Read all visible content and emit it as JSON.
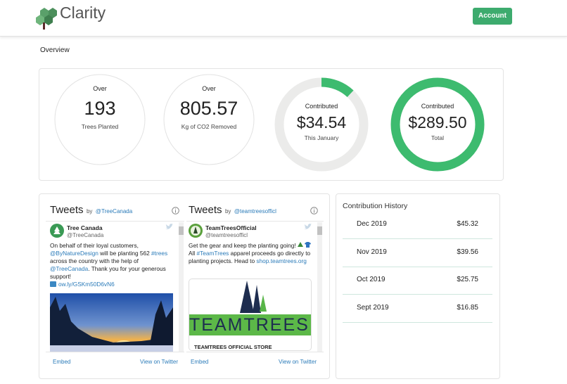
{
  "header": {
    "brand": "Clarity",
    "account_button": "Account"
  },
  "overview": {
    "title": "Overview",
    "stats": [
      {
        "label": "Over",
        "value": "193",
        "caption": "Trees Planted"
      },
      {
        "label": "Over",
        "value": "805.57",
        "caption": "Kg of CO2 Removed"
      },
      {
        "label": "Contributed",
        "value": "$34.54",
        "caption": "This January",
        "progress": 12
      },
      {
        "label": "Contributed",
        "value": "$289.50",
        "caption": "Total",
        "progress": 100
      }
    ]
  },
  "tweets": [
    {
      "title": "Tweets",
      "by": "by",
      "handle": "@TreeCanada",
      "author": "Tree Canada",
      "author_handle": "@TreeCanada",
      "text": [
        "On behalf of their loyal customers, ",
        "@ByNatureDesign",
        " will be planting 562 ",
        "#trees",
        " across the country with the help of ",
        "@TreeCanada",
        ". Thank you for your generous support!"
      ],
      "link": "ow.ly/GSKm50D6vN6",
      "embed": "Embed",
      "view": "View on Twitter"
    },
    {
      "title": "Tweets",
      "by": "by",
      "handle": "@teamtreesofficl",
      "author": "TeamTreesOfficial",
      "author_handle": "@teamtreesofficl",
      "text": [
        "Get the gear and keep the planting going! ",
        " All ",
        "#TeamTrees",
        " apparel proceeds go directly to planting projects. Head to ",
        "shop.teamtrees.org"
      ],
      "card_logo": "TEAMTREES",
      "card_title": "TEAMTREES OFFICIAL STORE",
      "embed": "Embed",
      "view": "View on Twitter"
    }
  ],
  "history": {
    "title": "Contribution History",
    "rows": [
      [
        "Dec 2019",
        "$45.32"
      ],
      [
        "Nov 2019",
        "$39.56"
      ],
      [
        "Oct 2019",
        "$25.75"
      ],
      [
        "Sept 2019",
        "$16.85"
      ]
    ]
  }
}
